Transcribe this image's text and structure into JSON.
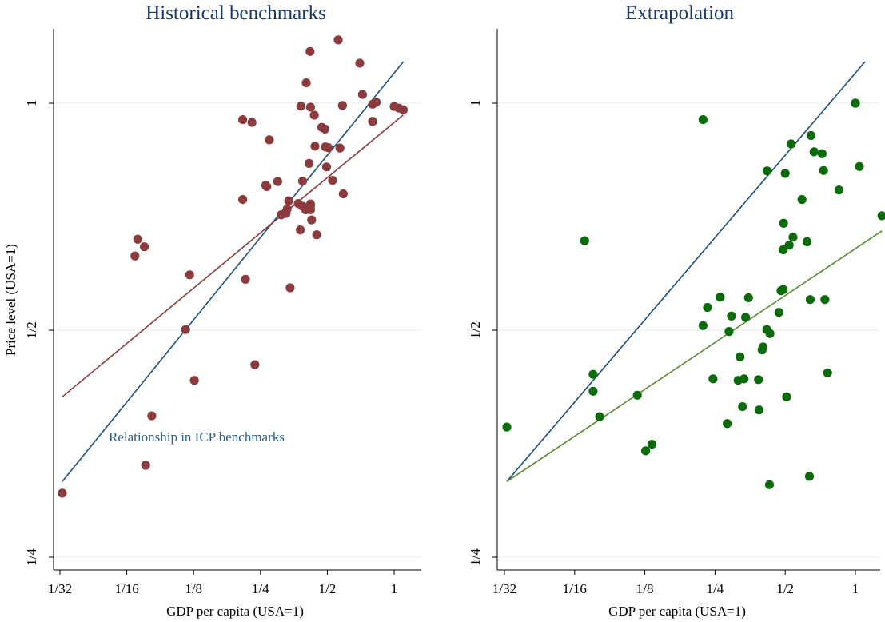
{
  "chart_data": [
    {
      "type": "scatter",
      "title": "Historical benchmarks",
      "xlabel": "GDP per capita (USA=1)",
      "ylabel": "Price level (USA=1)",
      "x_scale": "log2",
      "y_scale": "log2",
      "x_ticks": [
        {
          "value": 0.03125,
          "label": "1/32"
        },
        {
          "value": 0.0625,
          "label": "1/16"
        },
        {
          "value": 0.125,
          "label": "1/8"
        },
        {
          "value": 0.25,
          "label": "1/4"
        },
        {
          "value": 0.5,
          "label": "1/2"
        },
        {
          "value": 1,
          "label": "1"
        }
      ],
      "y_ticks": [
        {
          "value": 0.25,
          "label": "1/4"
        },
        {
          "value": 0.5,
          "label": "1/2"
        },
        {
          "value": 1,
          "label": "1"
        }
      ],
      "xlim": [
        0.0294,
        1.36
      ],
      "ylim": [
        0.245,
        1.24
      ],
      "grid": "horizontal",
      "point_color": "#8b3a3e",
      "points": [
        [
          0.032,
          0.304
        ],
        [
          0.07,
          0.66
        ],
        [
          0.068,
          0.627
        ],
        [
          0.075,
          0.645
        ],
        [
          0.076,
          0.331
        ],
        [
          0.081,
          0.385
        ],
        [
          0.115,
          0.501
        ],
        [
          0.12,
          0.592
        ],
        [
          0.126,
          0.429
        ],
        [
          0.208,
          0.951
        ],
        [
          0.208,
          0.745
        ],
        [
          0.214,
          0.584
        ],
        [
          0.229,
          0.943
        ],
        [
          0.236,
          0.45
        ],
        [
          0.264,
          0.778
        ],
        [
          0.267,
          0.775
        ],
        [
          0.274,
          0.894
        ],
        [
          0.299,
          0.787
        ],
        [
          0.31,
          0.711
        ],
        [
          0.326,
          0.714
        ],
        [
          0.33,
          0.724
        ],
        [
          0.34,
          0.569
        ],
        [
          0.335,
          0.742
        ],
        [
          0.37,
          0.736
        ],
        [
          0.378,
          0.679
        ],
        [
          0.38,
          0.991
        ],
        [
          0.386,
          0.73
        ],
        [
          0.387,
          0.788
        ],
        [
          0.4,
          0.722
        ],
        [
          0.4,
          0.724
        ],
        [
          0.402,
          1.064
        ],
        [
          0.414,
          0.832
        ],
        [
          0.418,
          1.171
        ],
        [
          0.42,
          0.731
        ],
        [
          0.425,
          0.7
        ],
        [
          0.42,
          0.735
        ],
        [
          0.42,
          0.722
        ],
        [
          0.42,
          0.988
        ],
        [
          0.437,
          0.964
        ],
        [
          0.44,
          0.877
        ],
        [
          0.448,
          0.669
        ],
        [
          0.472,
          0.929
        ],
        [
          0.49,
          0.875
        ],
        [
          0.488,
          0.924
        ],
        [
          0.496,
          0.823
        ],
        [
          0.505,
          0.873
        ],
        [
          0.528,
          0.79
        ],
        [
          0.56,
          1.213
        ],
        [
          0.57,
          0.872
        ],
        [
          0.585,
          0.993
        ],
        [
          0.59,
          0.758
        ],
        [
          0.7,
          1.13
        ],
        [
          0.72,
          1.027
        ],
        [
          0.8,
          0.997
        ],
        [
          0.8,
          0.946
        ],
        [
          0.83,
          1.003
        ],
        [
          1.0,
          0.99
        ],
        [
          1.05,
          0.985
        ],
        [
          1.1,
          0.98
        ]
      ],
      "fit_lines": [
        {
          "label": "Relationship in ICP benchmarks",
          "color": "#1f4e79",
          "from": [
            0.032,
            0.315
          ],
          "to": [
            1.1,
            1.135
          ]
        },
        {
          "color": "#8b3a3e",
          "from": [
            0.032,
            0.408
          ],
          "to": [
            1.1,
            0.965
          ]
        }
      ],
      "annotation": "Relationship in ICP benchmarks"
    },
    {
      "type": "scatter",
      "title": "Extrapolation",
      "xlabel": "GDP per capita (USA=1)",
      "ylabel": "",
      "x_scale": "log2",
      "y_scale": "log2",
      "x_ticks": [
        {
          "value": 0.03125,
          "label": "1/32"
        },
        {
          "value": 0.0625,
          "label": "1/16"
        },
        {
          "value": 0.125,
          "label": "1/8"
        },
        {
          "value": 0.25,
          "label": "1/4"
        },
        {
          "value": 0.5,
          "label": "1/2"
        },
        {
          "value": 1,
          "label": "1"
        }
      ],
      "y_ticks": [
        {
          "value": 0.25,
          "label": "1/4"
        },
        {
          "value": 0.5,
          "label": "1/2"
        },
        {
          "value": 1,
          "label": "1"
        }
      ],
      "xlim": [
        0.0294,
        1.36
      ],
      "ylim": [
        0.245,
        1.24
      ],
      "grid": "horizontal",
      "point_color": "#0b6b0b",
      "points": [
        [
          0.032,
          0.372
        ],
        [
          0.069,
          0.657
        ],
        [
          0.075,
          0.437
        ],
        [
          0.075,
          0.415
        ],
        [
          0.08,
          0.384
        ],
        [
          0.116,
          0.41
        ],
        [
          0.126,
          0.346
        ],
        [
          0.134,
          0.353
        ],
        [
          0.222,
          0.951
        ],
        [
          0.222,
          0.507
        ],
        [
          0.232,
          0.536
        ],
        [
          0.245,
          0.431
        ],
        [
          0.263,
          0.553
        ],
        [
          0.282,
          0.376
        ],
        [
          0.287,
          0.498
        ],
        [
          0.294,
          0.522
        ],
        [
          0.314,
          0.429
        ],
        [
          0.32,
          0.461
        ],
        [
          0.328,
          0.396
        ],
        [
          0.333,
          0.431
        ],
        [
          0.338,
          0.52
        ],
        [
          0.348,
          0.552
        ],
        [
          0.384,
          0.43
        ],
        [
          0.386,
          0.392
        ],
        [
          0.398,
          0.471
        ],
        [
          0.402,
          0.475
        ],
        [
          0.418,
          0.813
        ],
        [
          0.417,
          0.501
        ],
        [
          0.428,
          0.312
        ],
        [
          0.43,
          0.495
        ],
        [
          0.47,
          0.528
        ],
        [
          0.48,
          0.564
        ],
        [
          0.49,
          0.566
        ],
        [
          0.49,
          0.639
        ],
        [
          0.492,
          0.693
        ],
        [
          0.5,
          0.807
        ],
        [
          0.507,
          0.408
        ],
        [
          0.52,
          0.648
        ],
        [
          0.53,
          0.883
        ],
        [
          0.54,
          0.664
        ],
        [
          0.59,
          0.745
        ],
        [
          0.62,
          0.655
        ],
        [
          0.635,
          0.32
        ],
        [
          0.64,
          0.549
        ],
        [
          0.645,
          0.906
        ],
        [
          0.665,
          0.862
        ],
        [
          0.72,
          0.857
        ],
        [
          0.73,
          0.814
        ],
        [
          0.74,
          0.549
        ],
        [
          0.76,
          0.439
        ],
        [
          0.85,
          0.767
        ],
        [
          1.0,
          1.0
        ],
        [
          1.0,
          1.0
        ],
        [
          1.04,
          0.824
        ],
        [
          1.3,
          0.709
        ]
      ],
      "fit_lines": [
        {
          "color": "#1f4e79",
          "from": [
            0.032,
            0.315
          ],
          "to": [
            1.1,
            1.135
          ]
        },
        {
          "color": "#5a8a32",
          "from": [
            0.032,
            0.315
          ],
          "to": [
            1.3,
            0.677
          ]
        }
      ]
    }
  ]
}
